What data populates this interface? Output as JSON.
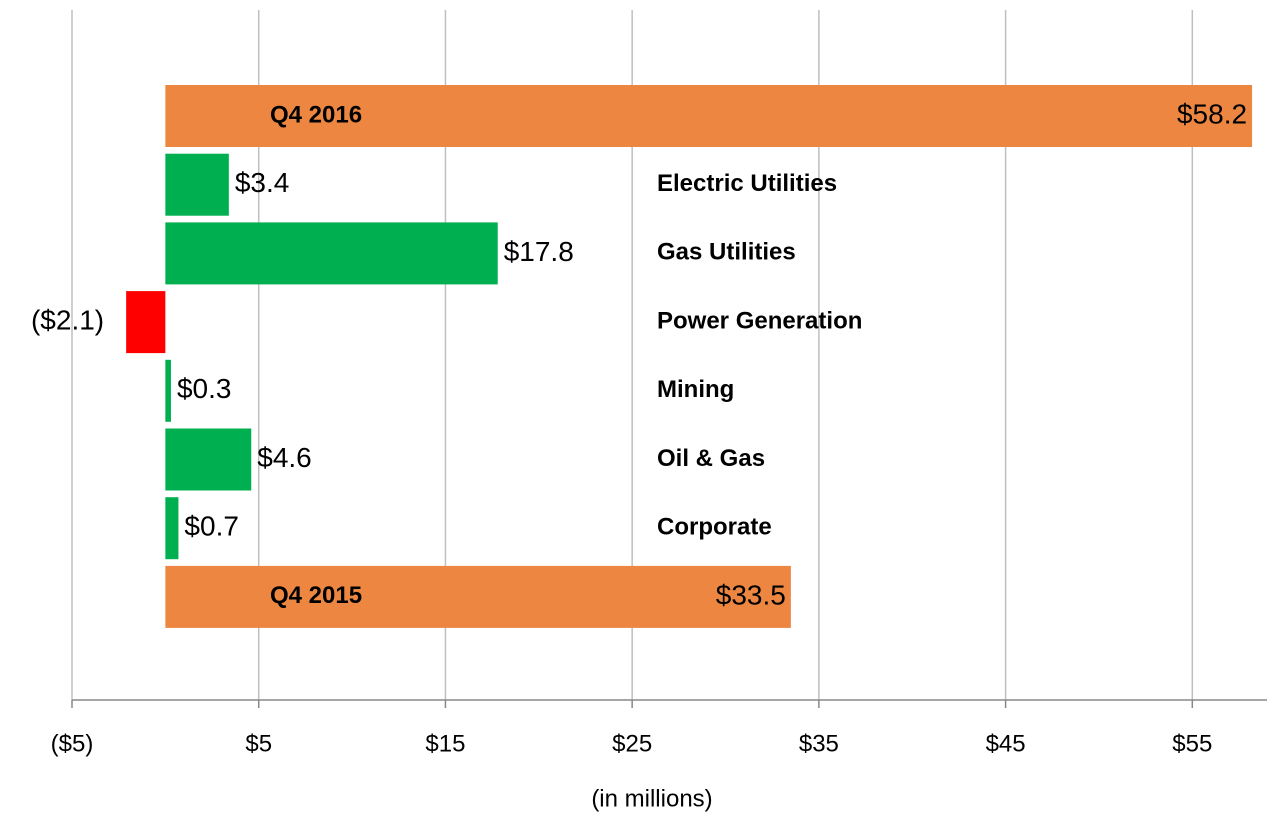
{
  "chart_data": {
    "type": "bar",
    "orientation": "horizontal",
    "categories": [
      "Q4 2016",
      "Electric Utilities",
      "Gas Utilities",
      "Power Generation",
      "Mining",
      "Oil & Gas",
      "Corporate",
      "Q4 2015"
    ],
    "values": [
      58.2,
      3.4,
      17.8,
      -2.1,
      0.3,
      4.6,
      0.7,
      33.5
    ],
    "value_labels": [
      "$58.2",
      "$3.4",
      "$17.8",
      "($2.1)",
      "$0.3",
      "$4.6",
      "$0.7",
      "$33.5"
    ],
    "colors": [
      "#ed8641",
      "#00b050",
      "#00b050",
      "#ff0000",
      "#00b050",
      "#00b050",
      "#00b050",
      "#ed8641"
    ],
    "xlabel": "(in millions)",
    "xlim": [
      -5,
      59
    ],
    "xticks": [
      {
        "value": -5,
        "label": "($5)"
      },
      {
        "value": 5,
        "label": "$5"
      },
      {
        "value": 15,
        "label": "$15"
      },
      {
        "value": 25,
        "label": "$25"
      },
      {
        "value": 35,
        "label": "$35"
      },
      {
        "value": 45,
        "label": "$45"
      },
      {
        "value": 55,
        "label": "$55"
      }
    ],
    "grid": true
  }
}
